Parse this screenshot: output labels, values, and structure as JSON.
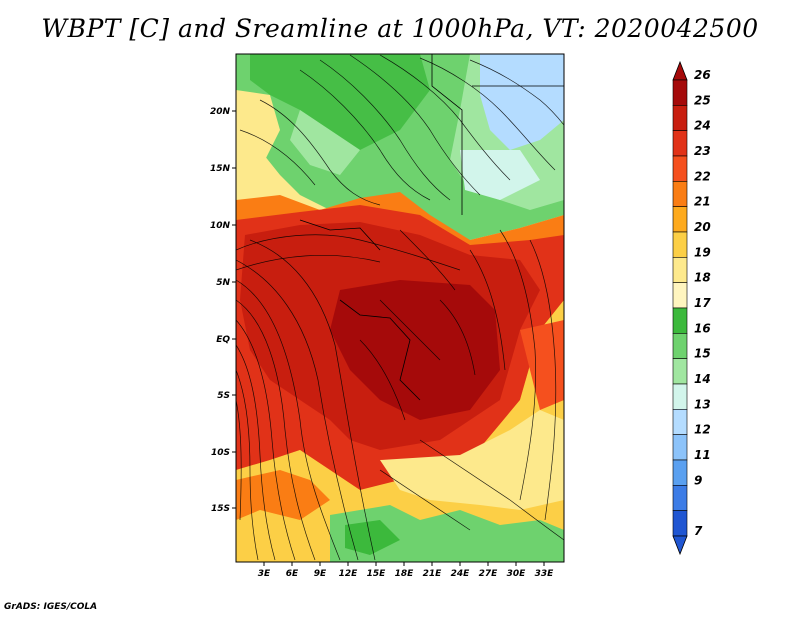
{
  "title": "WBPT [C] and Sreamline at 1000hPa, VT: 2020042500",
  "credit": "GrADS: IGES/COLA",
  "map": {
    "lat_labels": [
      "20N",
      "15N",
      "10N",
      "5N",
      "EQ",
      "5S",
      "10S",
      "15S"
    ],
    "lon_labels": [
      "3E",
      "6E",
      "9E",
      "12E",
      "15E",
      "18E",
      "21E",
      "24E",
      "27E",
      "30E",
      "33E"
    ]
  },
  "colorbar": {
    "labels": [
      "26",
      "25",
      "24",
      "23",
      "22",
      "21",
      "20",
      "19",
      "18",
      "17",
      "16",
      "15",
      "14",
      "13",
      "12",
      "11",
      "9",
      "7"
    ],
    "colors": [
      "#a50a0a",
      "#c81e0f",
      "#e13218",
      "#f5501e",
      "#fa7d14",
      "#fdaa1e",
      "#fccf46",
      "#fde98c",
      "#fff5bf",
      "#3cb93c",
      "#6ed26e",
      "#a0e6a0",
      "#d2f5eb",
      "#b4dcff",
      "#8cc3fa",
      "#5aa0f0",
      "#3c7ce6",
      "#2056d2"
    ]
  }
}
